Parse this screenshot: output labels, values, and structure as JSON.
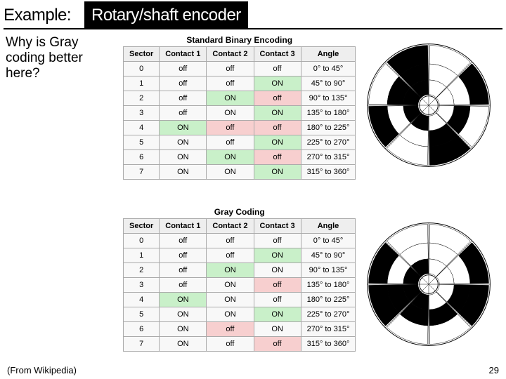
{
  "title": {
    "part1": "Example:",
    "part2": " Rotary/shaft encoder"
  },
  "question": "Why is Gray coding better here?",
  "source": "(From Wikipedia)",
  "page_number": "29",
  "headers": [
    "Sector",
    "Contact 1",
    "Contact 2",
    "Contact 3",
    "Angle"
  ],
  "tables": {
    "binary": {
      "title": "Standard Binary Encoding",
      "rows": [
        {
          "sector": "0",
          "c1": "off",
          "c2": "off",
          "c3": "off",
          "angle": "0° to 45°",
          "h": []
        },
        {
          "sector": "1",
          "c1": "off",
          "c2": "off",
          "c3": "ON",
          "angle": "45° to 90°",
          "h": [
            "c3"
          ]
        },
        {
          "sector": "2",
          "c1": "off",
          "c2": "ON",
          "c3": "off",
          "angle": "90° to 135°",
          "h": [
            "c2",
            "c3"
          ]
        },
        {
          "sector": "3",
          "c1": "off",
          "c2": "ON",
          "c3": "ON",
          "angle": "135° to 180°",
          "h": [
            "c3"
          ]
        },
        {
          "sector": "4",
          "c1": "ON",
          "c2": "off",
          "c3": "off",
          "angle": "180° to 225°",
          "h": [
            "c1",
            "c2",
            "c3"
          ]
        },
        {
          "sector": "5",
          "c1": "ON",
          "c2": "off",
          "c3": "ON",
          "angle": "225° to 270°",
          "h": [
            "c3"
          ]
        },
        {
          "sector": "6",
          "c1": "ON",
          "c2": "ON",
          "c3": "off",
          "angle": "270° to 315°",
          "h": [
            "c2",
            "c3"
          ]
        },
        {
          "sector": "7",
          "c1": "ON",
          "c2": "ON",
          "c3": "ON",
          "angle": "315° to 360°",
          "h": [
            "c3"
          ]
        }
      ]
    },
    "gray": {
      "title": "Gray Coding",
      "rows": [
        {
          "sector": "0",
          "c1": "off",
          "c2": "off",
          "c3": "off",
          "angle": "0° to 45°",
          "h": []
        },
        {
          "sector": "1",
          "c1": "off",
          "c2": "off",
          "c3": "ON",
          "angle": "45° to 90°",
          "h": [
            "c3"
          ]
        },
        {
          "sector": "2",
          "c1": "off",
          "c2": "ON",
          "c3": "ON",
          "angle": "90° to 135°",
          "h": [
            "c2"
          ]
        },
        {
          "sector": "3",
          "c1": "off",
          "c2": "ON",
          "c3": "off",
          "angle": "135° to 180°",
          "h": [
            "c3"
          ]
        },
        {
          "sector": "4",
          "c1": "ON",
          "c2": "ON",
          "c3": "off",
          "angle": "180° to 225°",
          "h": [
            "c1"
          ]
        },
        {
          "sector": "5",
          "c1": "ON",
          "c2": "ON",
          "c3": "ON",
          "angle": "225° to 270°",
          "h": [
            "c3"
          ]
        },
        {
          "sector": "6",
          "c1": "ON",
          "c2": "off",
          "c3": "ON",
          "angle": "270° to 315°",
          "h": [
            "c2"
          ]
        },
        {
          "sector": "7",
          "c1": "ON",
          "c2": "off",
          "c3": "off",
          "angle": "315° to 360°",
          "h": [
            "c3"
          ]
        }
      ]
    }
  },
  "encoders": {
    "gap_deg": 2,
    "binary": {
      "rings": [
        {
          "r_in": 62,
          "r_out": 90,
          "on": [
            1,
            3,
            5,
            7
          ]
        },
        {
          "r_in": 38,
          "r_out": 62,
          "on": [
            2,
            3,
            6,
            7
          ]
        },
        {
          "r_in": 16,
          "r_out": 38,
          "on": [
            4,
            5,
            6,
            7
          ]
        }
      ]
    },
    "gray": {
      "rings": [
        {
          "r_in": 62,
          "r_out": 90,
          "on": [
            1,
            2,
            5,
            6
          ]
        },
        {
          "r_in": 38,
          "r_out": 62,
          "on": [
            2,
            3,
            4,
            5
          ]
        },
        {
          "r_in": 16,
          "r_out": 38,
          "on": [
            4,
            5,
            6,
            7
          ]
        }
      ]
    },
    "colors": {
      "on": "#000000",
      "off": "#ffffff",
      "line": "#000000"
    }
  }
}
